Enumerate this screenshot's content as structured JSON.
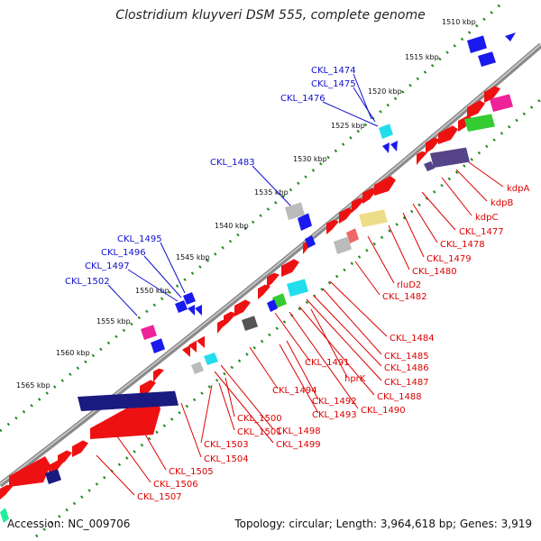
{
  "title": "Clostridium kluyveri DSM 555, complete genome",
  "footer": {
    "accession": "Accession: NC_009706",
    "summary": "Topology: circular; Length: 3,964,618 bp; Genes: 3,919"
  },
  "colors": {
    "backbone": "#8a8a8a",
    "tick_dots": "#1e8c1e",
    "blue_label": "#1010cc",
    "red_label": "#dd0000",
    "red_gene": "#ee1111",
    "navy_gene": "#1a1a80",
    "blue_gene": "#1a1aee",
    "green_gene": "#33cc33",
    "cyan_gene": "#22ddee",
    "magenta_gene": "#ee2299",
    "gray_gene": "#bbbbbb",
    "khaki_gene": "#eedd88",
    "purple_gene": "#554488"
  },
  "scale_labels": [
    "1510 kbp",
    "1515 kbp",
    "1520 kbp",
    "1525 kbp",
    "1530 kbp",
    "1535 kbp",
    "1540 kbp",
    "1545 kbp",
    "1550 kbp",
    "1555 kbp",
    "1560 kbp",
    "1565 kbp"
  ],
  "blue_labels": [
    "CKL_1474",
    "CKL_1475",
    "CKL_1476",
    "CKL_1483",
    "CKL_1495",
    "CKL_1496",
    "CKL_1497",
    "CKL_1502"
  ],
  "red_labels": [
    "kdpA",
    "kdpB",
    "kdpC",
    "CKL_1477",
    "CKL_1478",
    "CKL_1479",
    "CKL_1480",
    "rluD2",
    "CKL_1482",
    "CKL_1484",
    "CKL_1485",
    "CKL_1486",
    "CKL_1487",
    "hprK",
    "CKL_1488",
    "CKL_1490",
    "CKL_1491",
    "CKL_1492",
    "CKL_1493",
    "CKL_1494",
    "CKL_1498",
    "CKL_1499",
    "CKL_1500",
    "CKL_1501",
    "CKL_1503",
    "CKL_1504",
    "CKL_1505",
    "CKL_1506",
    "CKL_1507"
  ]
}
